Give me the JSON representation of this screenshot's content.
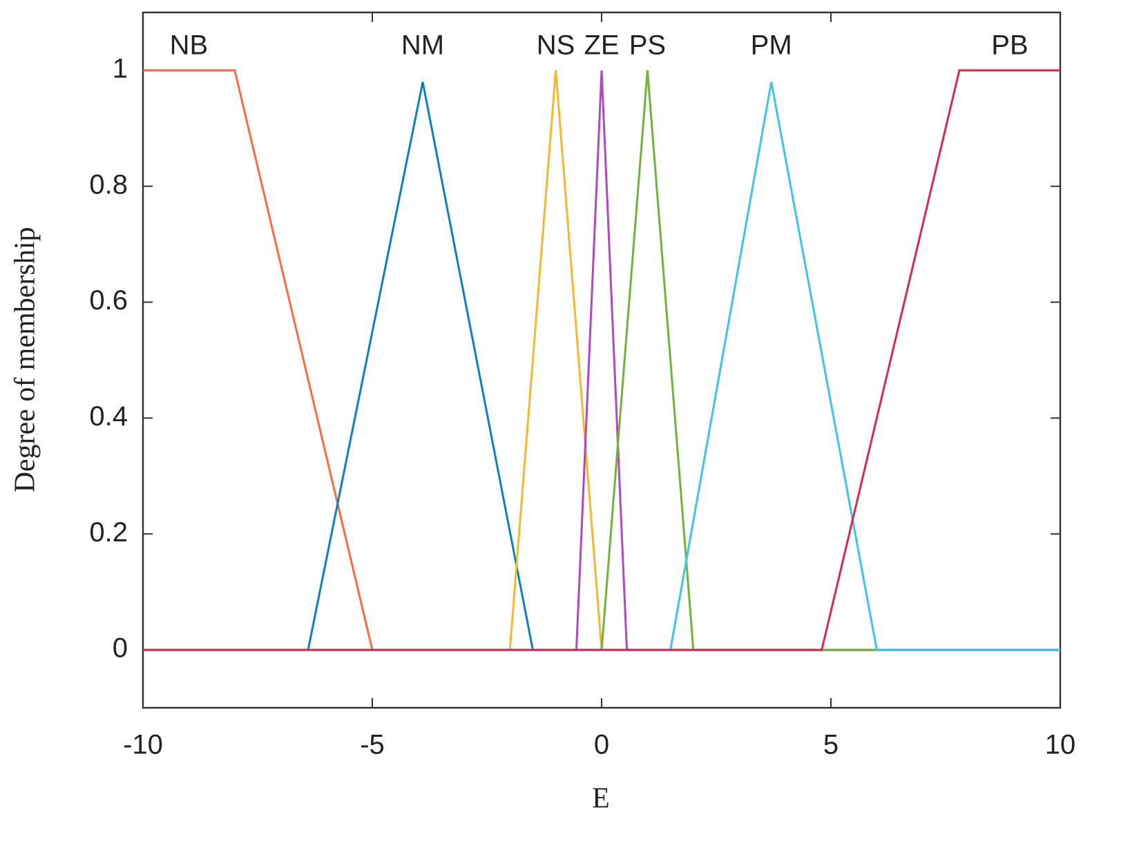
{
  "chart_data": {
    "type": "line",
    "x_label": "E",
    "y_label": "Degree of membership",
    "xlim": [
      -10,
      10
    ],
    "ylim": [
      -0.1,
      1.1
    ],
    "xticks": [
      -10,
      -5,
      0,
      5,
      10
    ],
    "yticks": [
      0,
      0.2,
      0.4,
      0.6,
      0.8,
      1
    ],
    "series": [
      {
        "name": "NB",
        "color": "#ff6a3d",
        "x": [
          -10,
          -8,
          -5,
          10
        ],
        "values": [
          1,
          1,
          0,
          0
        ]
      },
      {
        "name": "NM",
        "color": "#0d7fbf",
        "x": [
          -10,
          -6.4,
          -3.9,
          -1.5,
          10
        ],
        "values": [
          0,
          0,
          0.98,
          0,
          0
        ]
      },
      {
        "name": "NS",
        "color": "#f5b82e",
        "x": [
          -10,
          -2,
          -1,
          0,
          10
        ],
        "values": [
          0,
          0,
          1,
          0,
          0
        ]
      },
      {
        "name": "ZE",
        "color": "#b048c0",
        "x": [
          -10,
          -0.55,
          0,
          0.55,
          10
        ],
        "values": [
          0,
          0,
          1,
          0,
          0
        ]
      },
      {
        "name": "PS",
        "color": "#72b23a",
        "x": [
          -10,
          0,
          1,
          2,
          10
        ],
        "values": [
          0,
          0,
          1,
          0,
          0
        ]
      },
      {
        "name": "PM",
        "color": "#3cc4ee",
        "x": [
          -10,
          1.5,
          3.7,
          6,
          10
        ],
        "values": [
          0,
          0,
          0.98,
          0,
          0
        ]
      },
      {
        "name": "PB",
        "color": "#d92a4c",
        "x": [
          -10,
          4.8,
          7.8,
          10
        ],
        "values": [
          0,
          0,
          1,
          1
        ]
      }
    ]
  }
}
